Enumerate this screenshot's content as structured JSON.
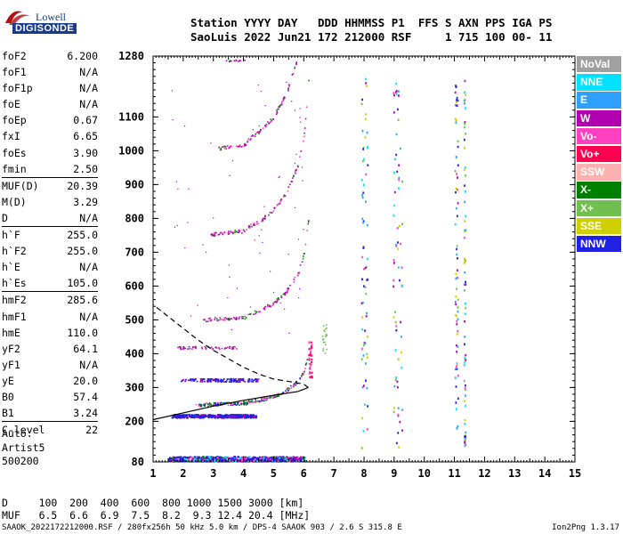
{
  "logo": {
    "top": "Lowell",
    "bottom": "DIGISONDE"
  },
  "header": {
    "line1": "Station YYYY DAY   DDD HHMMSS P1  FFS S AXN PPS IGA PS",
    "line2": "SaoLuis 2022 Jun21 172 212000 RSF     1 715 100 00- 11"
  },
  "params": [
    {
      "label": "foF2",
      "value": "6.200"
    },
    {
      "label": "foF1",
      "value": "N/A"
    },
    {
      "label": "foF1p",
      "value": "N/A"
    },
    {
      "label": "foE",
      "value": "N/A"
    },
    {
      "label": "foEp",
      "value": "0.67"
    },
    {
      "label": "fxI",
      "value": "6.65"
    },
    {
      "label": "foEs",
      "value": "3.90"
    },
    {
      "label": "fmin",
      "value": "2.50"
    },
    {
      "label": "MUF(D)",
      "value": "20.39",
      "sep": true
    },
    {
      "label": "M(D)",
      "value": "3.29"
    },
    {
      "label": "D",
      "value": "N/A"
    },
    {
      "label": "h`F",
      "value": "255.0",
      "sep": true
    },
    {
      "label": "h`F2",
      "value": "255.0"
    },
    {
      "label": "h`E",
      "value": "N/A"
    },
    {
      "label": "h`Es",
      "value": "105.0"
    },
    {
      "label": "hmF2",
      "value": "285.6",
      "sep": true
    },
    {
      "label": "hmF1",
      "value": "N/A"
    },
    {
      "label": "hmE",
      "value": "110.0"
    },
    {
      "label": "yF2",
      "value": "64.1"
    },
    {
      "label": "yF1",
      "value": "N/A"
    },
    {
      "label": "yE",
      "value": "20.0"
    },
    {
      "label": "B0",
      "value": "57.4"
    },
    {
      "label": "B1",
      "value": "3.24"
    },
    {
      "label": "C-level",
      "value": "22",
      "sep": true
    }
  ],
  "auto": {
    "line1": "Auto:",
    "line2": "Artist5",
    "line3": "500200"
  },
  "legend": [
    {
      "label": "NoVal",
      "color": "#a0a0a0"
    },
    {
      "label": "NNE",
      "color": "#00e0ff"
    },
    {
      "label": "E",
      "color": "#30a0ff"
    },
    {
      "label": "W",
      "color": "#b000b0"
    },
    {
      "label": "Vo-",
      "color": "#ff40c0"
    },
    {
      "label": "Vo+",
      "color": "#ff0050"
    },
    {
      "label": "SSW",
      "color": "#ffb0b0"
    },
    {
      "label": "X-",
      "color": "#008000"
    },
    {
      "label": "X+",
      "color": "#70c050"
    },
    {
      "label": "SSE",
      "color": "#d0d000"
    },
    {
      "label": "NNW",
      "color": "#2020e0"
    }
  ],
  "chart_data": {
    "type": "scatter",
    "xlim": [
      1,
      15
    ],
    "ylim": [
      80,
      1280
    ],
    "x_ticks": [
      "1",
      "2",
      "3",
      "4",
      "5",
      "6",
      "7",
      "8",
      "9",
      "10",
      "11",
      "12",
      "13",
      "14",
      "15"
    ],
    "y_ticks": [
      "80",
      "200",
      "300",
      "400",
      "500",
      "600",
      "700",
      "800",
      "900",
      "1000",
      "1100",
      "1280"
    ],
    "traces": [
      {
        "name": "F2 trace",
        "points": [
          [
            4.1,
            258
          ],
          [
            4.6,
            266
          ],
          [
            5.0,
            276
          ],
          [
            5.4,
            292
          ],
          [
            5.8,
            320
          ],
          [
            6.0,
            350
          ],
          [
            6.2,
            420
          ]
        ]
      },
      {
        "name": "Es trace",
        "points": [
          [
            1.6,
            216
          ],
          [
            2.5,
            218
          ],
          [
            3.5,
            219
          ],
          [
            4.4,
            218
          ]
        ]
      },
      {
        "name": "E layer",
        "points": [
          [
            1.6,
            86
          ],
          [
            3.0,
            87
          ],
          [
            4.5,
            88
          ],
          [
            5.9,
            90
          ]
        ]
      }
    ],
    "profile_curve": [
      [
        1.0,
        205
      ],
      [
        2.0,
        225
      ],
      [
        3.0,
        245
      ],
      [
        4.0,
        262
      ],
      [
        5.0,
        277
      ],
      [
        5.8,
        288
      ],
      [
        6.15,
        300
      ],
      [
        6.0,
        310
      ],
      [
        5.5,
        318
      ],
      [
        5.0,
        325
      ],
      [
        4.5,
        340
      ],
      [
        4.0,
        360
      ],
      [
        3.5,
        385
      ],
      [
        3.0,
        410
      ],
      [
        2.5,
        440
      ],
      [
        2.0,
        475
      ],
      [
        1.5,
        510
      ],
      [
        1.0,
        545
      ]
    ]
  },
  "muf_table": {
    "d_label": "D",
    "d_values": "100  200  400  600  800 1000 1500 3000 [km]",
    "muf_label": "MUF",
    "muf_values": "6.5  6.6  6.9  7.5  8.2  9.3 12.4 20.4 [MHz]"
  },
  "footer": {
    "left": "SAAOK_2022172212000.RSF / 280fx256h 50 kHz 5.0 km / DPS-4 SAAOK 903 / 2.6 S 315.8 E",
    "right": "Ion2Png 1.3.17"
  }
}
